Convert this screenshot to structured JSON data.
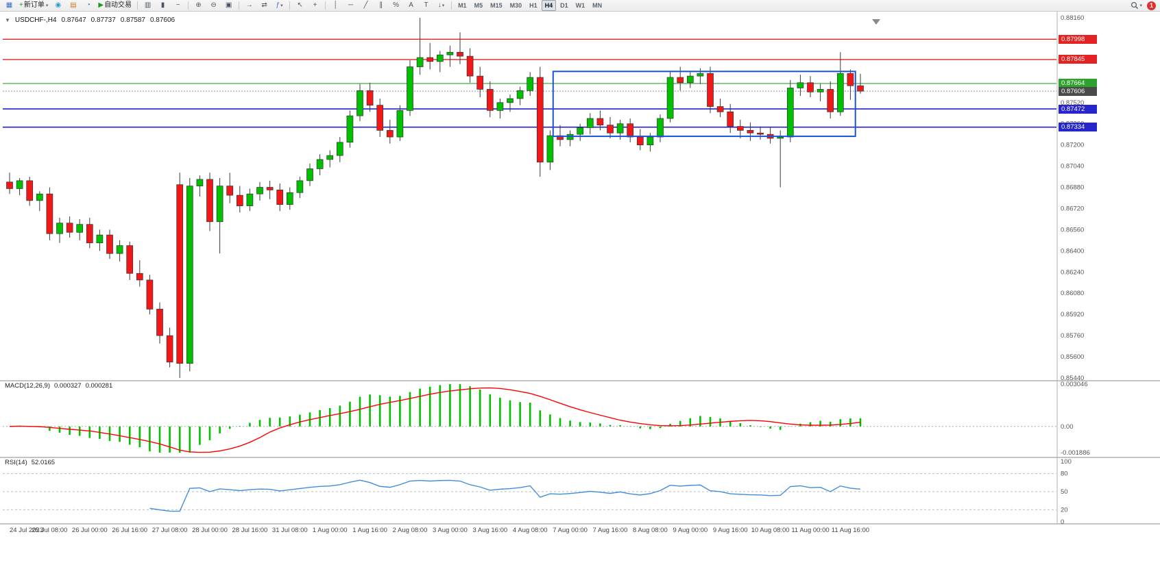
{
  "toolbar": {
    "new_order_label": "新订单",
    "auto_trading_label": "自动交易",
    "timeframes": [
      "M1",
      "M5",
      "M15",
      "M30",
      "H1",
      "H4",
      "D1",
      "W1",
      "MN"
    ],
    "active_timeframe": "H4",
    "notification_count": "1",
    "icons": {
      "window": "▦",
      "plus": "+",
      "caret": "▾",
      "droplet": "◉",
      "profiles": "▤",
      "clock": "◔",
      "play": "▶",
      "bars": "▥",
      "candles": "▮",
      "linechart": "~",
      "zoomin": "⊕",
      "zoomout": "⊖",
      "tile": "▣",
      "autoscroll": "→",
      "chartshift": "⇄",
      "indicators": "ƒ",
      "cursor": "↖",
      "crosshair": "+",
      "vline": "│",
      "hline": "─",
      "trendline": "╱",
      "channel": "∥",
      "fibonacci": "%",
      "texttool": "A",
      "labeltool": "T",
      "arrowtool": "↓",
      "expander": "▼",
      "shift_marker": "▼"
    }
  },
  "chart": {
    "title": "USDCHF-,H4",
    "ohlc": {
      "open": "0.87647",
      "high": "0.87737",
      "low": "0.87587",
      "close": "0.87606"
    }
  },
  "price_axis": {
    "labels": [
      "0.88160",
      "0.88000",
      "0.87840",
      "0.87680",
      "0.87520",
      "0.87360",
      "0.87200",
      "0.87040",
      "0.86880",
      "0.86720",
      "0.86560",
      "0.86400",
      "0.86240",
      "0.86080",
      "0.85920",
      "0.85760",
      "0.85600",
      "0.85440"
    ],
    "badges": [
      {
        "text": "0.87998",
        "price": 0.87998,
        "bg": "#e32222"
      },
      {
        "text": "0.87845",
        "price": 0.87845,
        "bg": "#e32222"
      },
      {
        "text": "0.87664",
        "price": 0.87664,
        "bg": "#2da32d"
      },
      {
        "text": "0.87606",
        "price": 0.87606,
        "bg": "#4a4a4a"
      },
      {
        "text": "0.87472",
        "price": 0.87472,
        "bg": "#2626cc"
      },
      {
        "text": "0.87334",
        "price": 0.87334,
        "bg": "#2626cc"
      }
    ]
  },
  "chart_data": [
    {
      "type": "candlestick",
      "title": "USDCHF- H4",
      "ylim": [
        0.8544,
        0.8816
      ],
      "up_color": "#00c000",
      "down_color": "#f01818",
      "wick_color": "#3a3a3a",
      "x_tick_labels": [
        "24 Jul 2023",
        "25 Jul 08:00",
        "26 Jul 00:00",
        "26 Jul 16:00",
        "27 Jul 08:00",
        "28 Jul 00:00",
        "28 Jul 16:00",
        "31 Jul 08:00",
        "1 Aug 00:00",
        "1 Aug 16:00",
        "2 Aug 08:00",
        "3 Aug 00:00",
        "3 Aug 16:00",
        "4 Aug 08:00",
        "7 Aug 00:00",
        "7 Aug 16:00",
        "8 Aug 08:00",
        "9 Aug 00:00",
        "9 Aug 16:00",
        "10 Aug 08:00",
        "11 Aug 00:00",
        "11 Aug 16:00"
      ],
      "x_tick_step": 4,
      "hlines": [
        {
          "price": 0.87998,
          "color": "#e32222",
          "style": "solid",
          "width": 1.4
        },
        {
          "price": 0.87845,
          "color": "#e32222",
          "style": "solid",
          "width": 1.4
        },
        {
          "price": 0.87664,
          "color": "#2da32d",
          "style": "solid",
          "width": 1.2
        },
        {
          "price": 0.87606,
          "color": "#909090",
          "style": "dotted",
          "width": 1
        },
        {
          "price": 0.87472,
          "color": "#2222cc",
          "style": "solid",
          "width": 1.6
        },
        {
          "price": 0.87334,
          "color": "#2222cc",
          "style": "solid",
          "width": 1.6
        }
      ],
      "rectangle": {
        "start_index": 54.3,
        "end_index": 84.5,
        "top_price": 0.87755,
        "bottom_price": 0.87265,
        "color": "#1a53d9",
        "width": 2
      },
      "candles": [
        [
          0.8692,
          0.8699,
          0.8683,
          0.8687
        ],
        [
          0.8687,
          0.8695,
          0.8682,
          0.8693
        ],
        [
          0.8693,
          0.8696,
          0.8674,
          0.8678
        ],
        [
          0.8678,
          0.8685,
          0.867,
          0.8683
        ],
        [
          0.8683,
          0.8688,
          0.8648,
          0.8653
        ],
        [
          0.8653,
          0.8665,
          0.8646,
          0.8661
        ],
        [
          0.8661,
          0.8666,
          0.865,
          0.8654
        ],
        [
          0.8654,
          0.8664,
          0.8648,
          0.866
        ],
        [
          0.866,
          0.8665,
          0.8642,
          0.8646
        ],
        [
          0.8646,
          0.8656,
          0.864,
          0.8652
        ],
        [
          0.8652,
          0.8656,
          0.8634,
          0.8638
        ],
        [
          0.8638,
          0.8648,
          0.8632,
          0.8644
        ],
        [
          0.8644,
          0.8647,
          0.8618,
          0.8623
        ],
        [
          0.8623,
          0.8633,
          0.8613,
          0.8618
        ],
        [
          0.8618,
          0.8622,
          0.8592,
          0.8596
        ],
        [
          0.8596,
          0.8601,
          0.857,
          0.8576
        ],
        [
          0.8576,
          0.8582,
          0.8552,
          0.8556
        ],
        [
          0.869,
          0.8699,
          0.8544,
          0.8555
        ],
        [
          0.8555,
          0.8695,
          0.8549,
          0.8689
        ],
        [
          0.8689,
          0.8697,
          0.8681,
          0.8694
        ],
        [
          0.8694,
          0.8699,
          0.8655,
          0.8662
        ],
        [
          0.8662,
          0.8695,
          0.8638,
          0.8689
        ],
        [
          0.8689,
          0.8699,
          0.8676,
          0.8682
        ],
        [
          0.8682,
          0.8689,
          0.8669,
          0.8674
        ],
        [
          0.8674,
          0.8687,
          0.867,
          0.8683
        ],
        [
          0.8683,
          0.8692,
          0.8678,
          0.8688
        ],
        [
          0.8688,
          0.8693,
          0.8679,
          0.8686
        ],
        [
          0.8686,
          0.8691,
          0.867,
          0.8675
        ],
        [
          0.8675,
          0.8688,
          0.8671,
          0.8684
        ],
        [
          0.8684,
          0.8696,
          0.868,
          0.8693
        ],
        [
          0.8693,
          0.8706,
          0.8689,
          0.8702
        ],
        [
          0.8702,
          0.8713,
          0.8697,
          0.8709
        ],
        [
          0.8709,
          0.8716,
          0.8703,
          0.8712
        ],
        [
          0.8712,
          0.8726,
          0.8707,
          0.8722
        ],
        [
          0.8722,
          0.8746,
          0.8718,
          0.8742
        ],
        [
          0.8742,
          0.8766,
          0.8738,
          0.8761
        ],
        [
          0.8761,
          0.8767,
          0.8745,
          0.875
        ],
        [
          0.875,
          0.8755,
          0.8726,
          0.8731
        ],
        [
          0.8731,
          0.8739,
          0.8721,
          0.8726
        ],
        [
          0.8726,
          0.875,
          0.8723,
          0.8746
        ],
        [
          0.8746,
          0.8784,
          0.8742,
          0.8779
        ],
        [
          0.8779,
          0.8816,
          0.8773,
          0.8786
        ],
        [
          0.8786,
          0.8797,
          0.8777,
          0.8783
        ],
        [
          0.8783,
          0.8791,
          0.8775,
          0.8788
        ],
        [
          0.8788,
          0.8795,
          0.8779,
          0.879
        ],
        [
          0.879,
          0.8805,
          0.8781,
          0.8787
        ],
        [
          0.8787,
          0.8793,
          0.8767,
          0.8772
        ],
        [
          0.8772,
          0.8779,
          0.8756,
          0.8762
        ],
        [
          0.8762,
          0.8768,
          0.8741,
          0.8746
        ],
        [
          0.8746,
          0.8755,
          0.874,
          0.8752
        ],
        [
          0.8752,
          0.8758,
          0.8745,
          0.8755
        ],
        [
          0.8755,
          0.8764,
          0.875,
          0.8761
        ],
        [
          0.8761,
          0.8775,
          0.8757,
          0.8771
        ],
        [
          0.8771,
          0.8779,
          0.8696,
          0.8707
        ],
        [
          0.8707,
          0.8731,
          0.8701,
          0.8727
        ],
        [
          0.8727,
          0.8735,
          0.8719,
          0.8724
        ],
        [
          0.8724,
          0.8731,
          0.8719,
          0.8728
        ],
        [
          0.8728,
          0.8736,
          0.8723,
          0.8733
        ],
        [
          0.8733,
          0.8744,
          0.8728,
          0.874
        ],
        [
          0.874,
          0.8746,
          0.8731,
          0.8735
        ],
        [
          0.8735,
          0.8741,
          0.8725,
          0.8729
        ],
        [
          0.8729,
          0.8739,
          0.8724,
          0.8736
        ],
        [
          0.8736,
          0.874,
          0.8722,
          0.8726
        ],
        [
          0.8726,
          0.8732,
          0.8716,
          0.872
        ],
        [
          0.872,
          0.8729,
          0.8715,
          0.8726
        ],
        [
          0.8726,
          0.8743,
          0.8722,
          0.874
        ],
        [
          0.874,
          0.8776,
          0.8737,
          0.8771
        ],
        [
          0.8771,
          0.8779,
          0.8761,
          0.8767
        ],
        [
          0.8767,
          0.8775,
          0.8763,
          0.8772
        ],
        [
          0.8772,
          0.8778,
          0.8766,
          0.8774
        ],
        [
          0.8774,
          0.8779,
          0.8744,
          0.8749
        ],
        [
          0.8749,
          0.8755,
          0.8741,
          0.8745
        ],
        [
          0.8745,
          0.8751,
          0.8729,
          0.8734
        ],
        [
          0.8734,
          0.8739,
          0.8725,
          0.8731
        ],
        [
          0.8731,
          0.8737,
          0.8723,
          0.8729
        ],
        [
          0.8729,
          0.8734,
          0.8724,
          0.8728
        ],
        [
          0.8728,
          0.8733,
          0.8721,
          0.8725
        ],
        [
          0.8725,
          0.8731,
          0.8688,
          0.8726
        ],
        [
          0.8726,
          0.8769,
          0.8722,
          0.8763
        ],
        [
          0.8763,
          0.8773,
          0.8757,
          0.8767
        ],
        [
          0.8767,
          0.8772,
          0.8756,
          0.876
        ],
        [
          0.876,
          0.8766,
          0.8753,
          0.8762
        ],
        [
          0.8762,
          0.8768,
          0.874,
          0.8745
        ],
        [
          0.8745,
          0.879,
          0.8742,
          0.8774
        ],
        [
          0.8774,
          0.8777,
          0.8754,
          0.87647
        ],
        [
          0.87647,
          0.87737,
          0.87587,
          0.87606
        ]
      ]
    },
    {
      "type": "bar",
      "name": "MACD(12,26,9)",
      "params": [
        12,
        26,
        9
      ],
      "value_main": "0.000327",
      "value_signal": "0.000281",
      "ylim": [
        -0.001886,
        0.003046
      ],
      "axis_labels": [
        {
          "text": "0.003046",
          "value": 0.003046
        },
        {
          "text": "0.00",
          "value": 0
        },
        {
          "text": "-0.001886",
          "value": -0.001886
        }
      ],
      "histogram_color": "#00c000",
      "signal_color": "#ff0000",
      "derived": "computed from candlestick closes"
    },
    {
      "type": "line",
      "name": "RSI(14)",
      "period": 14,
      "value": "52.0165",
      "ylim": [
        0,
        100
      ],
      "levels": [
        80,
        50,
        20
      ],
      "axis_labels": [
        {
          "text": "100",
          "value": 100
        },
        {
          "text": "80",
          "value": 80
        },
        {
          "text": "50",
          "value": 50
        },
        {
          "text": "20",
          "value": 20
        },
        {
          "text": "0",
          "value": 0
        }
      ],
      "line_color": "#3f8edc",
      "derived": "computed from candlestick closes"
    }
  ]
}
